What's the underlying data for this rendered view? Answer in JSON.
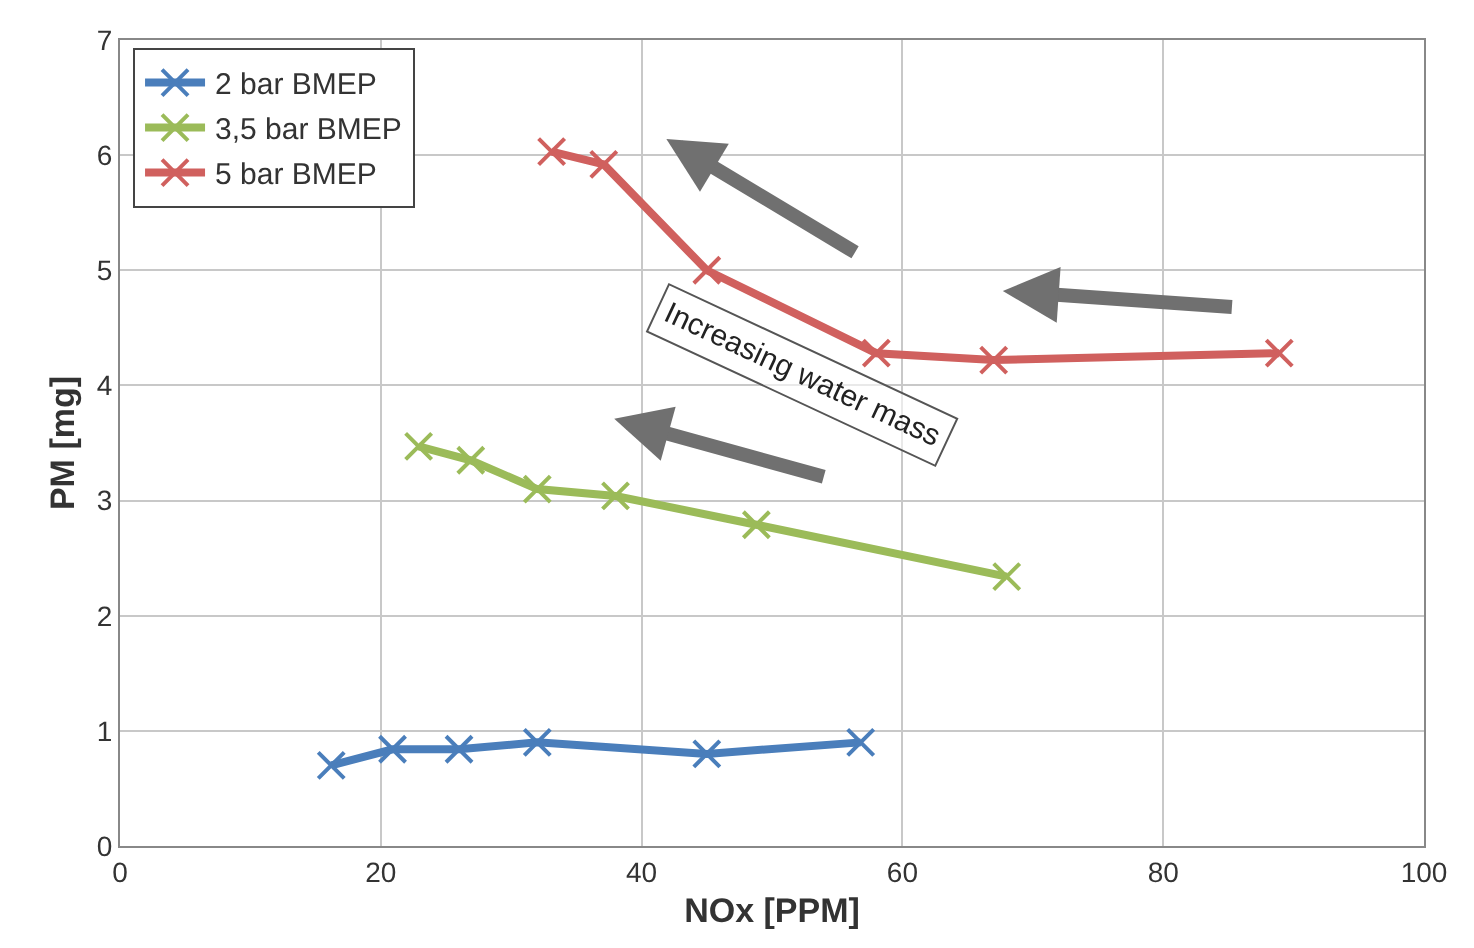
{
  "chart_data": {
    "type": "line",
    "xlabel": "NOx [PPM]",
    "ylabel": "PM [mg]",
    "xlim": [
      0,
      100
    ],
    "xticks": [
      0,
      20,
      40,
      60,
      80,
      100
    ],
    "ylim": [
      0,
      7
    ],
    "yticks": [
      0,
      1,
      2,
      3,
      4,
      5,
      6,
      7
    ],
    "grid": true,
    "legend": "top left",
    "marker": "cross",
    "line_style": "solid",
    "series": [
      {
        "name": "2 bar BMEP",
        "color": "#4a7ebb",
        "x": [
          16.2,
          20.9,
          26,
          32,
          45,
          56.8
        ],
        "values": [
          0.7,
          0.84,
          0.84,
          0.9,
          0.8,
          0.9
        ]
      },
      {
        "name": "3,5 bar BMEP",
        "color": "#9bbb59",
        "x": [
          22.9,
          26.9,
          32,
          38,
          48.8,
          68
        ],
        "values": [
          3.47,
          3.35,
          3.1,
          3.04,
          2.79,
          2.34
        ]
      },
      {
        "name": "5 bar BMEP",
        "color": "#d0605e",
        "x": [
          33.1,
          37.1,
          45,
          58,
          67,
          88.9
        ],
        "values": [
          6.03,
          5.92,
          5.0,
          4.28,
          4.22,
          4.28
        ]
      }
    ],
    "annotations": [
      "Increasing water mass"
    ]
  }
}
